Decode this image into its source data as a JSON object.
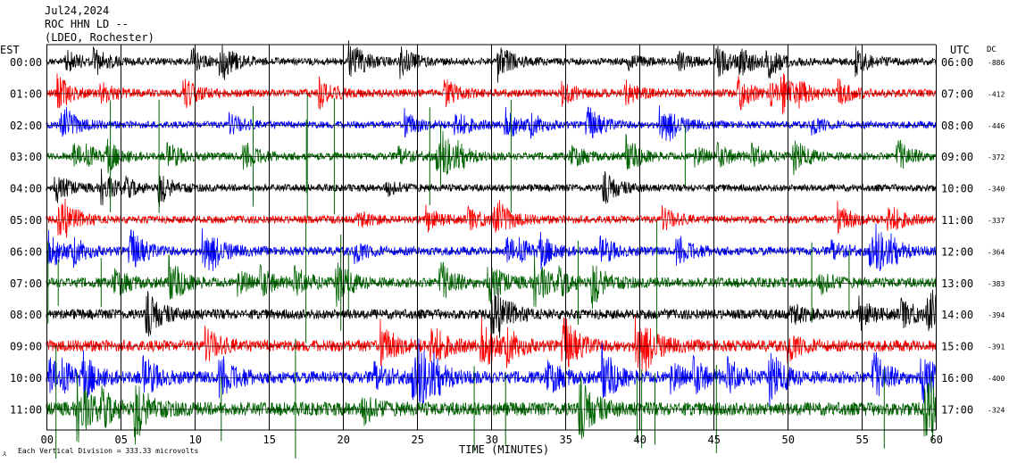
{
  "header": {
    "date": "Jul24,2024",
    "station": "ROC HHN LD --",
    "network": "(LDEO, Rochester)"
  },
  "left_axis_label": "EST",
  "right_axis_label": "UTC",
  "dc_label": "DC",
  "x_axis_title": "TIME (MINUTES)",
  "footer_note": "Each Vertical Division = 333.33 microvolts",
  "footer_mark": "⅄",
  "colors": {
    "black": "#000000",
    "red": "#ff0000",
    "blue": "#0000ff",
    "green": "#006400",
    "grid": "#000000"
  },
  "chart_data": {
    "type": "line",
    "title": "Jul24,2024",
    "xlabel": "TIME (MINUTES)",
    "xlim": [
      0,
      60
    ],
    "x_ticks": [
      "00",
      "05",
      "10",
      "15",
      "20",
      "25",
      "30",
      "35",
      "40",
      "45",
      "50",
      "55",
      "60"
    ],
    "series": [
      {
        "est": "00:00",
        "utc": "06:00",
        "dc": "-886",
        "color": "black",
        "amplitude": 1.0
      },
      {
        "est": "01:00",
        "utc": "07:00",
        "dc": "-412",
        "color": "red",
        "amplitude": 1.1
      },
      {
        "est": "02:00",
        "utc": "08:00",
        "dc": "-446",
        "color": "blue",
        "amplitude": 1.0
      },
      {
        "est": "03:00",
        "utc": "09:00",
        "dc": "-372",
        "color": "green",
        "amplitude": 1.1
      },
      {
        "est": "04:00",
        "utc": "10:00",
        "dc": "-340",
        "color": "black",
        "amplitude": 1.0
      },
      {
        "est": "05:00",
        "utc": "11:00",
        "dc": "-337",
        "color": "red",
        "amplitude": 1.1
      },
      {
        "est": "06:00",
        "utc": "12:00",
        "dc": "-364",
        "color": "blue",
        "amplitude": 1.2
      },
      {
        "est": "07:00",
        "utc": "13:00",
        "dc": "-383",
        "color": "green",
        "amplitude": 1.4
      },
      {
        "est": "08:00",
        "utc": "14:00",
        "dc": "-394",
        "color": "black",
        "amplitude": 1.4
      },
      {
        "est": "09:00",
        "utc": "15:00",
        "dc": "-391",
        "color": "red",
        "amplitude": 1.6
      },
      {
        "est": "10:00",
        "utc": "16:00",
        "dc": "-400",
        "color": "blue",
        "amplitude": 1.7
      },
      {
        "est": "11:00",
        "utc": "17:00",
        "dc": "-324",
        "color": "green",
        "amplitude": 1.9
      }
    ]
  }
}
